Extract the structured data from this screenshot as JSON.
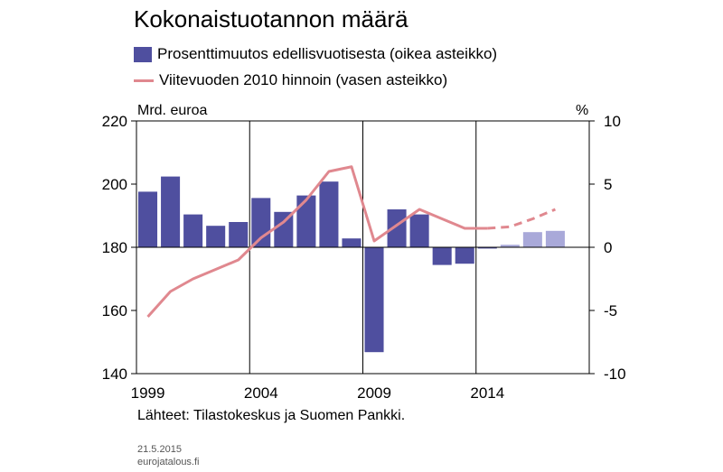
{
  "chart_data": {
    "type": "bar+line",
    "title": "Kokonaistuotannon määrä",
    "ylabel_left": "Mrd. euroa",
    "ylabel_right": "%",
    "ylim_left": [
      140,
      220
    ],
    "ylim_right": [
      -10,
      10
    ],
    "yticks_left": [
      "140",
      "160",
      "180",
      "200",
      "220"
    ],
    "yticks_right": [
      "-10",
      "-5",
      "0",
      "5",
      "10"
    ],
    "xticks": [
      {
        "label": "1999",
        "year": 1999
      },
      {
        "label": "2004",
        "year": 2004
      },
      {
        "label": "2009",
        "year": 2009
      },
      {
        "label": "2014",
        "year": 2014
      }
    ],
    "grid": "vertical",
    "legend_position": "top-left",
    "series": [
      {
        "name": "Prosenttimuutos edellisvuotisesta (oikea asteikko)",
        "type": "bar",
        "axis": "right",
        "color": "#4f4f9f",
        "forecast_color": "#a9a9d9",
        "x": [
          1999,
          2000,
          2001,
          2002,
          2003,
          2004,
          2005,
          2006,
          2007,
          2008,
          2009,
          2010,
          2011,
          2012,
          2013,
          2014,
          2015,
          2016,
          2017
        ],
        "values": [
          4.4,
          5.6,
          2.6,
          1.7,
          2.0,
          3.9,
          2.8,
          4.1,
          5.2,
          0.7,
          -8.3,
          3.0,
          2.6,
          -1.4,
          -1.3,
          -0.1,
          0.2,
          1.2,
          1.3
        ],
        "forecast_from": 2015
      },
      {
        "name": "Viitevuoden 2010 hinnoin (vasen asteikko)",
        "type": "line",
        "axis": "left",
        "color": "#e0888f",
        "x": [
          1999,
          2000,
          2001,
          2002,
          2003,
          2004,
          2005,
          2006,
          2007,
          2008,
          2009,
          2010,
          2011,
          2012,
          2013,
          2014,
          2015,
          2016,
          2017
        ],
        "values": [
          158,
          166,
          170,
          173,
          176,
          183,
          188,
          195,
          204,
          205.5,
          182,
          187,
          192,
          189,
          186,
          186,
          186.5,
          189,
          192
        ],
        "forecast_from": 2014
      }
    ]
  },
  "source_text": "Lähteet: Tilastokeskus ja Suomen Pankki.",
  "date_text": "21.5.2015",
  "site_text": "eurojatalous.fi"
}
